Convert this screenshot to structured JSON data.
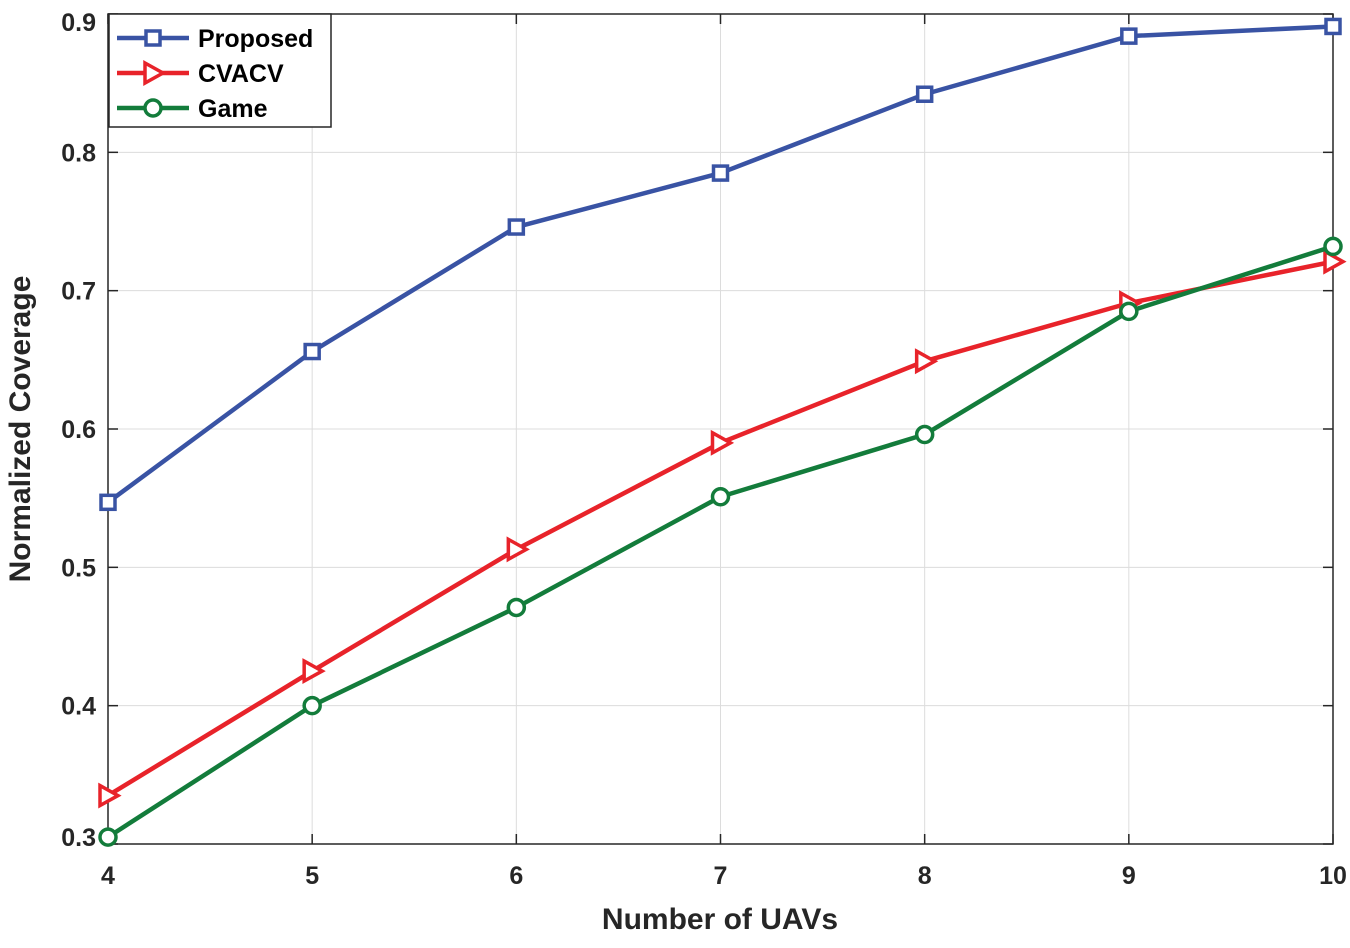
{
  "chart_data": {
    "type": "line",
    "title": "",
    "xlabel": "Number of UAVs",
    "ylabel": "Normalized Coverage",
    "x": [
      4,
      5,
      6,
      7,
      8,
      9,
      10
    ],
    "xlim": [
      4,
      10
    ],
    "ylim": [
      0.3,
      0.9
    ],
    "xticks": [
      "4",
      "5",
      "6",
      "7",
      "8",
      "9",
      "10"
    ],
    "yticks": [
      "0.3",
      "0.4",
      "0.5",
      "0.6",
      "0.7",
      "0.8",
      "0.9"
    ],
    "grid": true,
    "legend_position": "top-left",
    "series": [
      {
        "name": "Proposed",
        "marker": "square",
        "color": "#3953A4",
        "values": [
          0.547,
          0.656,
          0.746,
          0.785,
          0.842,
          0.884,
          0.891
        ]
      },
      {
        "name": "CVACV",
        "marker": "triangle-right",
        "color": "#E8232A",
        "values": [
          0.335,
          0.425,
          0.513,
          0.59,
          0.649,
          0.691,
          0.721
        ]
      },
      {
        "name": "Game",
        "marker": "circle",
        "color": "#137C3B",
        "values": [
          0.305,
          0.4,
          0.471,
          0.551,
          0.596,
          0.685,
          0.732
        ]
      }
    ]
  }
}
